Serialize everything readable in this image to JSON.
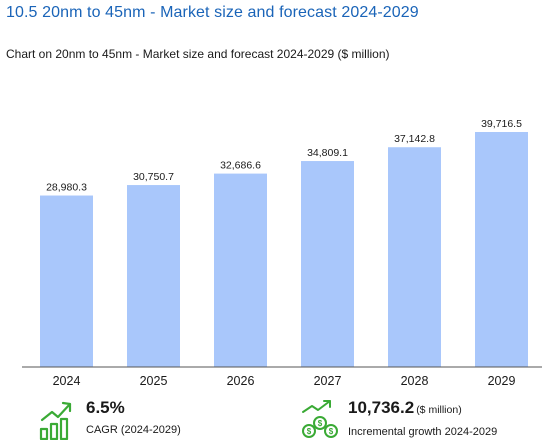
{
  "header": {
    "title": "10.5 20nm to 45nm - Market size and forecast 2024-2029",
    "caption": "Chart on 20nm to 45nm - Market size and forecast 2024-2029 ($ million)"
  },
  "chart_data": {
    "type": "bar",
    "categories": [
      "2024",
      "2025",
      "2026",
      "2027",
      "2028",
      "2029"
    ],
    "values": [
      28980.3,
      30750.7,
      32686.6,
      34809.1,
      37142.8,
      39716.5
    ],
    "data_labels": [
      "28,980.3",
      "30,750.7",
      "32,686.6",
      "34,809.1",
      "37,142.8",
      "39,716.5"
    ],
    "title": "Chart on 20nm to 45nm - Market size and forecast 2024-2029 ($ million)",
    "xlabel": "",
    "ylabel": "",
    "ylim": [
      0,
      39716.5
    ],
    "grid": false,
    "bar_color": "#a9c7fb"
  },
  "stats": {
    "cagr": {
      "value": "6.5%",
      "label": "CAGR (2024-2029)",
      "icon": "growth-chart-icon"
    },
    "incremental": {
      "value": "10,736.2",
      "unit": "($ million)",
      "label": "Incremental growth 2024-2029",
      "icon": "money-growth-icon"
    }
  },
  "colors": {
    "accent": "#1a64b8",
    "icon_green": "#3aaa35"
  }
}
